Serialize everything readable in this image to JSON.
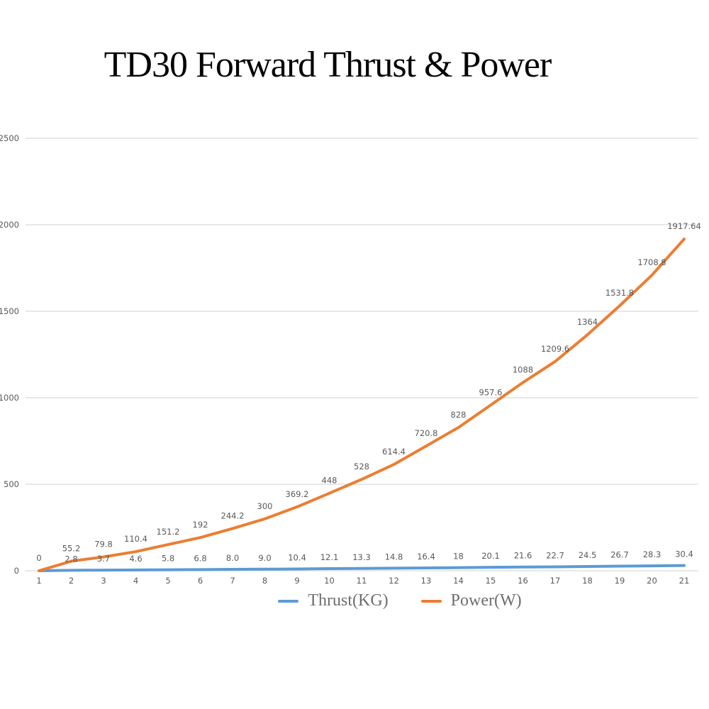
{
  "title": "TD30 Forward Thrust & Power",
  "colors": {
    "background": "#FFFFFF",
    "title_text": "#050505",
    "tick_text": "#595959",
    "data_label_text": "#595959",
    "legend_text": "#6E6E6E",
    "gridline": "#D9D9D9",
    "thrust_line": "#5B9BD5",
    "power_line": "#ED7D31"
  },
  "legend": {
    "position": "bottom",
    "items": [
      {
        "label": "Thrust(KG)",
        "color": "#5B9BD5"
      },
      {
        "label": "Power(W)",
        "color": "#ED7D31"
      }
    ]
  },
  "chart_data": {
    "type": "line",
    "title": "TD30 Forward Thrust & Power",
    "xlabel": "",
    "ylabel": "",
    "x": [
      1,
      2,
      3,
      4,
      5,
      6,
      7,
      8,
      9,
      10,
      11,
      12,
      13,
      14,
      15,
      16,
      17,
      18,
      19,
      20,
      21
    ],
    "xtick_labels": [
      "1",
      "2",
      "3",
      "4",
      "5",
      "6",
      "7",
      "8",
      "9",
      "10",
      "11",
      "12",
      "13",
      "14",
      "15",
      "16",
      "17",
      "18",
      "19",
      "20",
      "21"
    ],
    "ylim": [
      0,
      2500
    ],
    "yticks": [
      0,
      500,
      1000,
      1500,
      2000,
      2500
    ],
    "ytick_labels": [
      "0",
      "500",
      "1000",
      "1500",
      "2000",
      "2500"
    ],
    "grid": true,
    "legend_position": "bottom",
    "series": [
      {
        "name": "Thrust(KG)",
        "color": "#5B9BD5",
        "values": [
          0,
          2.8,
          3.7,
          4.6,
          5.8,
          6.8,
          8.0,
          9.0,
          10.4,
          12.1,
          13.3,
          14.8,
          16.4,
          18,
          20.1,
          21.6,
          22.7,
          24.5,
          26.7,
          28.3,
          30.4
        ],
        "labels": [
          "",
          "2.8",
          "3.7",
          "4.6",
          "5.8",
          "6.8",
          "8.0",
          "9.0",
          "10.4",
          "12.1",
          "13.3",
          "14.8",
          "16.4",
          "18",
          "20.1",
          "21.6",
          "22.7",
          "24.5",
          "26.7",
          "28.3",
          "30.4"
        ]
      },
      {
        "name": "Power(W)",
        "color": "#ED7D31",
        "values": [
          0,
          55.2,
          79.8,
          110.4,
          151.2,
          192,
          244.2,
          300,
          369.2,
          448,
          528,
          614.4,
          720.8,
          828,
          957.6,
          1088,
          1209.6,
          1364,
          1531.8,
          1708.8,
          1917.64
        ],
        "labels": [
          "0",
          "55.2",
          "79.8",
          "110.4",
          "151.2",
          "192",
          "244.2",
          "300",
          "369.2",
          "448",
          "528",
          "614.4",
          "720.8",
          "828",
          "957.6",
          "1088",
          "1209.6",
          "1364",
          "1531.8",
          "1708.8",
          "1917.64"
        ]
      }
    ]
  }
}
